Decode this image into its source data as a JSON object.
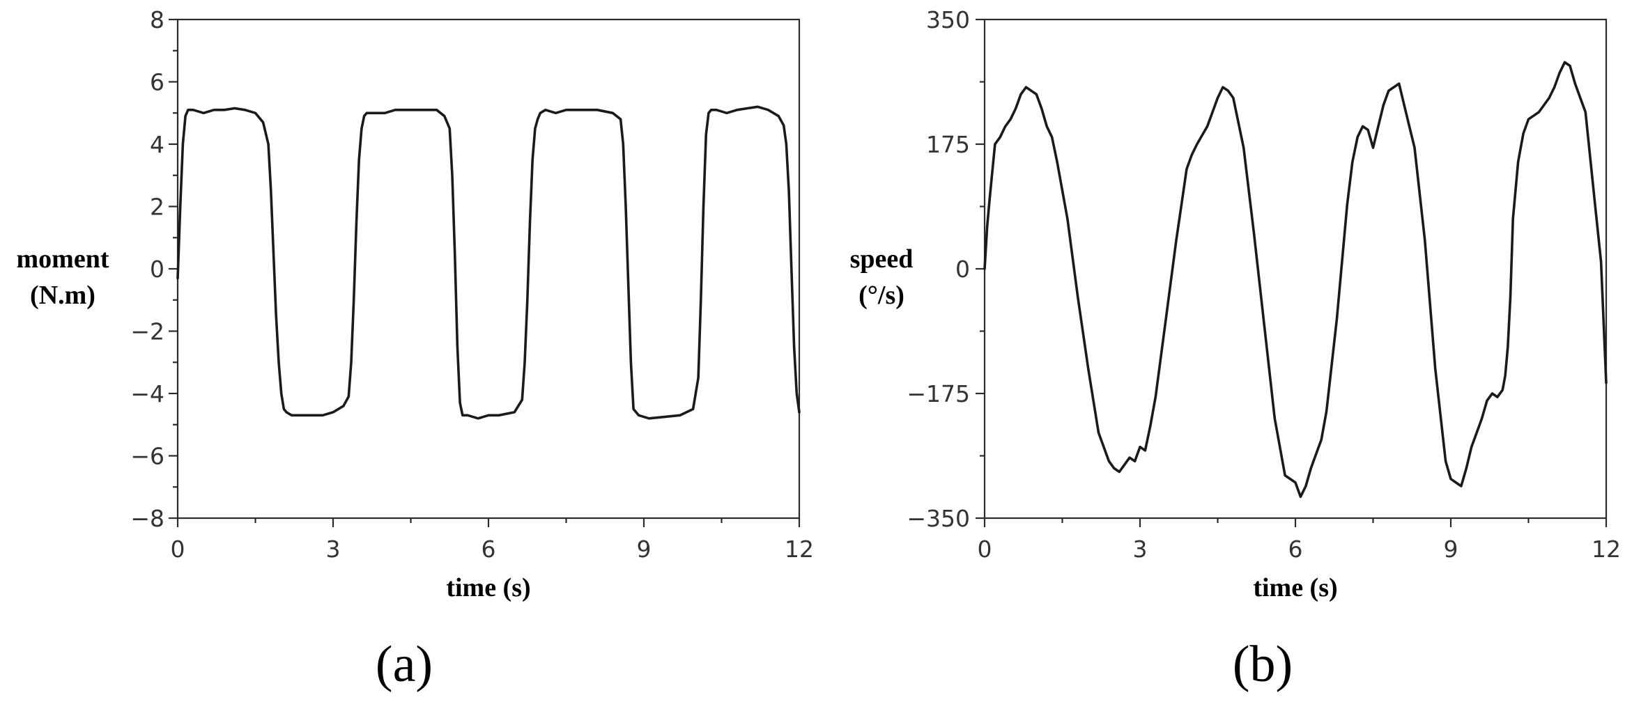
{
  "chart_data": [
    {
      "type": "line",
      "panel_label": "(a)",
      "ylabel_lines": [
        "moment",
        "(N.m)"
      ],
      "xlabel": "time (s)",
      "xlim": [
        0,
        12
      ],
      "ylim": [
        -8,
        8
      ],
      "xticks": [
        0,
        3,
        6,
        9,
        12
      ],
      "xtick_labels": [
        "0",
        "3",
        "6",
        "9",
        "12"
      ],
      "yticks": [
        -8,
        -6,
        -4,
        -2,
        0,
        2,
        4,
        6,
        8
      ],
      "ytick_labels": [
        "−8",
        "−6",
        "−4",
        "−2",
        "0",
        "2",
        "4",
        "6",
        "8"
      ],
      "grid": false,
      "series": [
        {
          "x": [
            0,
            0.05,
            0.1,
            0.15,
            0.2,
            0.3,
            0.5,
            0.7,
            0.9,
            1.1,
            1.3,
            1.5,
            1.65,
            1.75,
            1.8,
            1.85,
            1.9,
            1.95,
            2.0,
            2.05,
            2.1,
            2.2,
            2.4,
            2.6,
            2.8,
            3.0,
            3.2,
            3.3,
            3.35,
            3.4,
            3.45,
            3.5,
            3.55,
            3.6,
            3.65,
            3.7,
            3.8,
            4.0,
            4.2,
            4.5,
            4.8,
            5.0,
            5.15,
            5.25,
            5.3,
            5.35,
            5.4,
            5.45,
            5.5,
            5.6,
            5.8,
            6.0,
            6.2,
            6.5,
            6.65,
            6.7,
            6.75,
            6.8,
            6.85,
            6.9,
            6.95,
            7.0,
            7.1,
            7.3,
            7.5,
            7.8,
            8.1,
            8.4,
            8.55,
            8.6,
            8.65,
            8.7,
            8.75,
            8.8,
            8.9,
            9.1,
            9.4,
            9.7,
            9.95,
            10.05,
            10.1,
            10.15,
            10.2,
            10.25,
            10.3,
            10.4,
            10.6,
            10.8,
            11.0,
            11.2,
            11.4,
            11.6,
            11.7,
            11.75,
            11.8,
            11.85,
            11.9,
            11.95,
            12.0
          ],
          "y": [
            -0.3,
            2.0,
            4.0,
            4.9,
            5.1,
            5.1,
            5.0,
            5.1,
            5.1,
            5.15,
            5.1,
            5.0,
            4.7,
            4.0,
            2.5,
            0.5,
            -1.5,
            -3.0,
            -4.0,
            -4.5,
            -4.6,
            -4.7,
            -4.7,
            -4.7,
            -4.7,
            -4.6,
            -4.4,
            -4.1,
            -3.0,
            -1.0,
            1.5,
            3.5,
            4.5,
            4.9,
            5.0,
            5.0,
            5.0,
            5.0,
            5.1,
            5.1,
            5.1,
            5.1,
            4.9,
            4.5,
            3.0,
            0.5,
            -2.5,
            -4.3,
            -4.7,
            -4.7,
            -4.8,
            -4.7,
            -4.7,
            -4.6,
            -4.2,
            -3.0,
            -1.0,
            1.5,
            3.5,
            4.5,
            4.8,
            5.0,
            5.1,
            5.0,
            5.1,
            5.1,
            5.1,
            5.0,
            4.8,
            4.0,
            2.0,
            -0.5,
            -3.0,
            -4.5,
            -4.7,
            -4.8,
            -4.75,
            -4.7,
            -4.5,
            -3.5,
            -1.0,
            2.0,
            4.3,
            5.0,
            5.1,
            5.1,
            5.0,
            5.1,
            5.15,
            5.2,
            5.1,
            4.9,
            4.6,
            4.0,
            2.5,
            0.0,
            -2.5,
            -4.0,
            -4.6
          ]
        }
      ]
    },
    {
      "type": "line",
      "panel_label": "(b)",
      "ylabel_lines": [
        "speed",
        "(°/s)"
      ],
      "xlabel": "time (s)",
      "xlim": [
        0,
        12
      ],
      "ylim": [
        -350,
        350
      ],
      "xticks": [
        0,
        3,
        6,
        9,
        12
      ],
      "xtick_labels": [
        "0",
        "3",
        "6",
        "9",
        "12"
      ],
      "yticks": [
        -350,
        -175,
        0,
        175,
        350
      ],
      "ytick_labels": [
        "−350",
        "−175",
        "0",
        "175",
        "350"
      ],
      "grid": false,
      "series": [
        {
          "x": [
            0,
            0.05,
            0.1,
            0.2,
            0.3,
            0.4,
            0.5,
            0.6,
            0.7,
            0.8,
            0.9,
            1.0,
            1.1,
            1.2,
            1.3,
            1.4,
            1.5,
            1.6,
            1.8,
            2.0,
            2.2,
            2.4,
            2.5,
            2.6,
            2.7,
            2.8,
            2.9,
            3.0,
            3.1,
            3.2,
            3.3,
            3.5,
            3.7,
            3.8,
            3.9,
            4.0,
            4.1,
            4.3,
            4.5,
            4.6,
            4.7,
            4.8,
            5.0,
            5.2,
            5.4,
            5.6,
            5.8,
            5.9,
            6.0,
            6.1,
            6.2,
            6.3,
            6.4,
            6.5,
            6.6,
            6.8,
            6.9,
            7.0,
            7.1,
            7.2,
            7.3,
            7.4,
            7.5,
            7.6,
            7.7,
            7.8,
            8.0,
            8.2,
            8.3,
            8.5,
            8.7,
            8.9,
            9.0,
            9.1,
            9.2,
            9.3,
            9.4,
            9.5,
            9.6,
            9.7,
            9.8,
            9.9,
            10.0,
            10.05,
            10.1,
            10.15,
            10.2,
            10.3,
            10.4,
            10.5,
            10.7,
            10.9,
            11.0,
            11.1,
            11.2,
            11.3,
            11.4,
            11.5,
            11.6,
            11.7,
            11.8,
            11.9,
            12.0
          ],
          "y": [
            0,
            60,
            100,
            175,
            185,
            200,
            210,
            225,
            245,
            255,
            250,
            245,
            225,
            200,
            185,
            150,
            110,
            70,
            -40,
            -140,
            -230,
            -270,
            -280,
            -285,
            -275,
            -265,
            -270,
            -250,
            -255,
            -220,
            -180,
            -70,
            40,
            90,
            140,
            160,
            175,
            200,
            240,
            255,
            250,
            240,
            170,
            50,
            -80,
            -210,
            -290,
            -295,
            -300,
            -320,
            -305,
            -280,
            -260,
            -240,
            -200,
            -70,
            10,
            90,
            150,
            185,
            200,
            195,
            170,
            200,
            230,
            250,
            260,
            200,
            170,
            40,
            -140,
            -270,
            -295,
            -300,
            -305,
            -280,
            -250,
            -230,
            -210,
            -185,
            -175,
            -180,
            -170,
            -150,
            -110,
            -40,
            70,
            150,
            190,
            210,
            220,
            240,
            255,
            275,
            290,
            285,
            260,
            240,
            220,
            150,
            80,
            10,
            -160
          ]
        }
      ]
    }
  ]
}
